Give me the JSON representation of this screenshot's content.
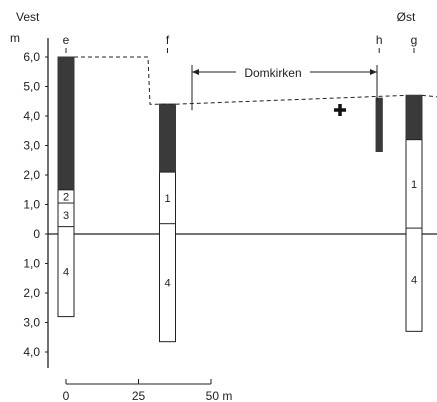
{
  "directions": {
    "west": "Vest",
    "east": "Øst"
  },
  "y_axis": {
    "unit": "m",
    "ticks_above": [
      "6,0",
      "5,0",
      "4,0",
      "3,0",
      "2,0",
      "1,0",
      "0"
    ],
    "ticks_below": [
      "1,0",
      "2,0",
      "3,0",
      "4,0"
    ]
  },
  "dome": {
    "label": "Domkirken"
  },
  "profiles": [
    {
      "id": "e",
      "label": "e",
      "x_m": 0,
      "top": 6.0,
      "bottom": -2.8,
      "dark_bottom": 1.5,
      "layers": [
        {
          "label": "2",
          "top": 1.5,
          "bottom": 1.05
        },
        {
          "label": "3",
          "top": 1.05,
          "bottom": 0.25
        },
        {
          "label": "4",
          "top": 0.25,
          "bottom": -2.8
        }
      ]
    },
    {
      "id": "f",
      "label": "f",
      "x_m": 35,
      "top": 4.4,
      "bottom": -3.65,
      "dark_bottom": 2.1,
      "layers": [
        {
          "label": "1",
          "top": 2.1,
          "bottom": 0.35
        },
        {
          "label": "4",
          "top": 0.35,
          "bottom": -3.65
        }
      ]
    },
    {
      "id": "h",
      "label": "h",
      "x_m": 108,
      "top": 4.6,
      "bottom": 2.8,
      "dark_bottom": 2.8,
      "layers": []
    },
    {
      "id": "g",
      "label": "g",
      "x_m": 120,
      "top": 4.7,
      "bottom": -3.3,
      "dark_bottom": 3.2,
      "layers": [
        {
          "label": "1",
          "top": 3.2,
          "bottom": 0.2
        },
        {
          "label": "4",
          "top": 0.2,
          "bottom": -3.3
        }
      ]
    }
  ],
  "scale_bar": {
    "ticks": [
      "0",
      "25",
      "50"
    ],
    "unit": "m"
  },
  "colors": {
    "dark": "#3a3a3a",
    "line": "#222222"
  }
}
